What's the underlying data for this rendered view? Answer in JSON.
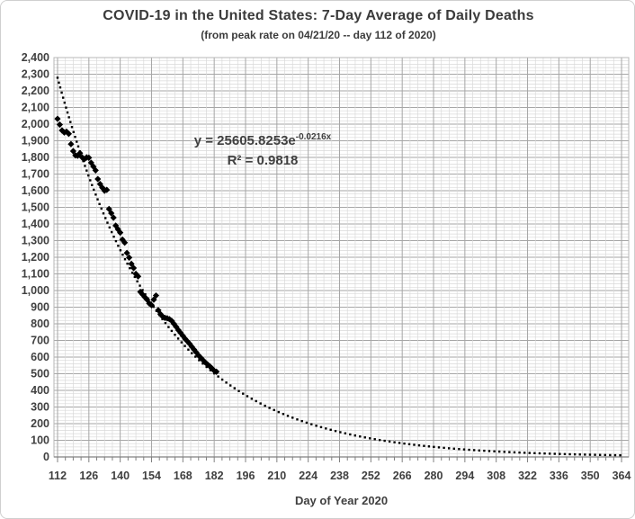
{
  "chart_data": {
    "type": "scatter",
    "title": "COVID-19 in the United States: 7-Day Average of Daily Deaths",
    "subtitle": "(from peak rate on 04/21/20 -- day 112 of 2020)",
    "xlabel": "Day of Year 2020",
    "ylabel": "",
    "xlim": [
      110.4,
      367.2
    ],
    "ylim": [
      0,
      2400
    ],
    "x_ticks": [
      112,
      126,
      140,
      154,
      168,
      182,
      196,
      210,
      224,
      238,
      252,
      266,
      280,
      294,
      308,
      322,
      336,
      350,
      364
    ],
    "y_ticks": [
      0,
      100,
      200,
      300,
      400,
      500,
      600,
      700,
      800,
      900,
      1000,
      1100,
      1200,
      1300,
      1400,
      1500,
      1600,
      1700,
      1800,
      1900,
      2000,
      2100,
      2200,
      2300,
      2400
    ],
    "x_minor_step": 3.5,
    "y_minor_step": 20,
    "x_major_step": 14,
    "y_major_step": 100,
    "grid": true,
    "legend_position": "none",
    "series": [
      {
        "name": "7-day average of daily deaths",
        "marker": "diamond",
        "color": "#000000",
        "points": [
          [
            112,
            2032
          ],
          [
            113,
            1997
          ],
          [
            114,
            1962
          ],
          [
            115,
            1950
          ],
          [
            116,
            1955
          ],
          [
            117,
            1942
          ],
          [
            118,
            1880
          ],
          [
            119,
            1838
          ],
          [
            120,
            1812
          ],
          [
            121,
            1810
          ],
          [
            122,
            1826
          ],
          [
            123,
            1800
          ],
          [
            124,
            1790
          ],
          [
            125,
            1800
          ],
          [
            126,
            1798
          ],
          [
            127,
            1768
          ],
          [
            128,
            1745
          ],
          [
            129,
            1722
          ],
          [
            130,
            1670
          ],
          [
            131,
            1640
          ],
          [
            132,
            1618
          ],
          [
            133,
            1600
          ],
          [
            134,
            1605
          ],
          [
            135,
            1490
          ],
          [
            136,
            1465
          ],
          [
            137,
            1438
          ],
          [
            138,
            1390
          ],
          [
            139,
            1368
          ],
          [
            140,
            1348
          ],
          [
            141,
            1306
          ],
          [
            142,
            1288
          ],
          [
            143,
            1226
          ],
          [
            144,
            1198
          ],
          [
            145,
            1160
          ],
          [
            146,
            1135
          ],
          [
            147,
            1100
          ],
          [
            148,
            1085
          ],
          [
            149,
            992
          ],
          [
            150,
            976
          ],
          [
            151,
            960
          ],
          [
            152,
            945
          ],
          [
            153,
            922
          ],
          [
            154,
            912
          ],
          [
            155,
            945
          ],
          [
            156,
            970
          ],
          [
            157,
            882
          ],
          [
            158,
            858
          ],
          [
            159,
            843
          ],
          [
            160,
            836
          ],
          [
            161,
            833
          ],
          [
            162,
            828
          ],
          [
            163,
            818
          ],
          [
            164,
            800
          ],
          [
            165,
            782
          ],
          [
            166,
            762
          ],
          [
            167,
            745
          ],
          [
            168,
            728
          ],
          [
            169,
            710
          ],
          [
            170,
            695
          ],
          [
            171,
            680
          ],
          [
            172,
            662
          ],
          [
            173,
            645
          ],
          [
            174,
            628
          ],
          [
            175,
            610
          ],
          [
            176,
            596
          ],
          [
            177,
            582
          ],
          [
            178,
            568
          ],
          [
            179,
            556
          ],
          [
            180,
            545
          ],
          [
            181,
            532
          ],
          [
            182,
            518
          ],
          [
            183,
            512
          ]
        ]
      }
    ],
    "trendline": {
      "type": "exponential",
      "a": 25605.8253,
      "b": -0.0216,
      "x_range": [
        112,
        364
      ],
      "style": "dotted",
      "color": "#000000",
      "label_prefix": "y = 25605.8253e",
      "label_exponent": "-0.0216x",
      "r2_label": "R² = 0.9818"
    },
    "colors": {
      "background": "#ffffff",
      "text": "#404040",
      "grid_minor": "#d9d9d9",
      "grid_major": "#a6a6a6",
      "axis_line": "#808080",
      "marker": "#000000"
    }
  }
}
